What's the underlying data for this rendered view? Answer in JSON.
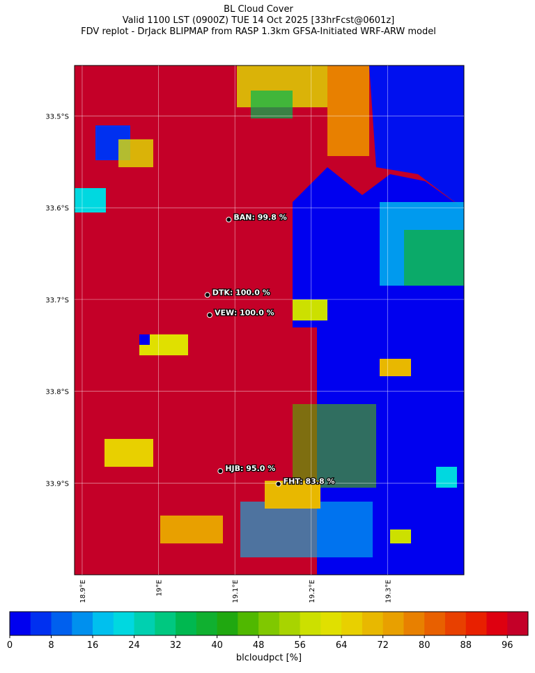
{
  "header": {
    "title": "BL Cloud Cover",
    "subtitle": "Valid 1100 LST (0900Z) TUE 14 Oct 2025 [33hrFcst@0601z]",
    "source": "FDV replot - DrJack BLIPMAP from RASP 1.3km GFSA-Initiated WRF-ARW model"
  },
  "map": {
    "lonlim": [
      18.89,
      19.4
    ],
    "latlim": [
      -34.0,
      -33.445
    ],
    "lat_ticks": [
      {
        "value": -33.5,
        "label": "33.5°S"
      },
      {
        "value": -33.6,
        "label": "33.6°S"
      },
      {
        "value": -33.7,
        "label": "33.7°S"
      },
      {
        "value": -33.8,
        "label": "33.8°S"
      },
      {
        "value": -33.9,
        "label": "33.9°S"
      }
    ],
    "lon_ticks": [
      {
        "value": 18.9,
        "label": "18.9°E"
      },
      {
        "value": 19.0,
        "label": "19°E"
      },
      {
        "value": 19.1,
        "label": "19.1°E"
      },
      {
        "value": 19.2,
        "label": "19.2°E"
      },
      {
        "value": 19.3,
        "label": "19.3°E"
      }
    ],
    "stations": [
      {
        "label": "BAN: 99.8 %",
        "lon": 19.092,
        "lat": -33.613
      },
      {
        "label": "DTK: 100.0 %",
        "lon": 19.064,
        "lat": -33.695
      },
      {
        "label": "VEW: 100.0 %",
        "lon": 19.067,
        "lat": -33.717
      },
      {
        "label": "HJB: 95.0 %",
        "lon": 19.081,
        "lat": -33.887
      },
      {
        "label": "FHT: 83.8 %",
        "lon": 19.157,
        "lat": -33.901
      }
    ]
  },
  "colorbar": {
    "label": "blcloudpct [%]",
    "lim": [
      0,
      100
    ],
    "ticks": [
      0,
      8,
      16,
      24,
      32,
      40,
      48,
      56,
      64,
      72,
      80,
      88,
      96
    ],
    "colors": [
      "#0000ef",
      "#0030f0",
      "#0060ee",
      "#0090ee",
      "#00c0ee",
      "#00d8e0",
      "#00d0b0",
      "#00c880",
      "#00b850",
      "#10b030",
      "#20a810",
      "#50b800",
      "#80c800",
      "#a8d400",
      "#cce000",
      "#e0e000",
      "#e8d000",
      "#e8b800",
      "#e8a000",
      "#e88000",
      "#e86000",
      "#e84000",
      "#e82000",
      "#de0010",
      "#c40028"
    ]
  }
}
